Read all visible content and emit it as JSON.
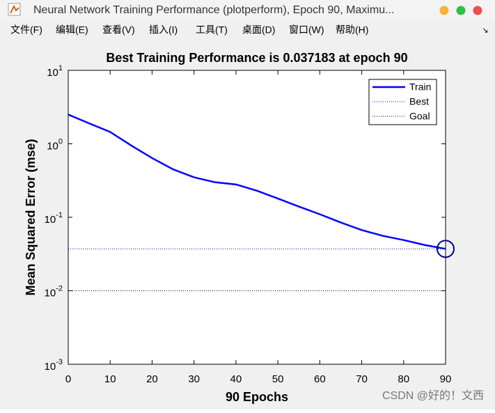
{
  "window": {
    "title": "Neural Network Training Performance (plotperform), Epoch 90, Maximu...",
    "menu": [
      "文件(F)",
      "编辑(E)",
      "查看(V)",
      "插入(I)",
      "工具(T)",
      "桌面(D)",
      "窗口(W)",
      "帮助(H)"
    ]
  },
  "chart_data": {
    "type": "line",
    "title": "Best Training Performance is 0.037183 at epoch 90",
    "x_label": "90 Epochs",
    "y_label": "Mean Squared Error  (mse)",
    "log_y": true,
    "x": [
      0,
      5,
      10,
      15,
      20,
      25,
      30,
      35,
      40,
      45,
      50,
      55,
      60,
      65,
      70,
      75,
      80,
      85,
      90
    ],
    "series": [
      {
        "name": "Train",
        "color": "#0000ff",
        "values": [
          2.5,
          1.9,
          1.45,
          0.95,
          0.64,
          0.45,
          0.35,
          0.3,
          0.28,
          0.23,
          0.18,
          0.14,
          0.11,
          0.085,
          0.067,
          0.056,
          0.049,
          0.042,
          0.037183
        ]
      },
      {
        "name": "Best",
        "color": "#0000ff",
        "value": 0.037183,
        "epoch": 90
      },
      {
        "name": "Goal",
        "color": "#000000",
        "value": 0.01
      }
    ],
    "xlim": [
      0,
      90
    ],
    "xticks": [
      0,
      10,
      20,
      30,
      40,
      50,
      60,
      70,
      80,
      90
    ],
    "ylim": [
      0.001,
      10
    ],
    "yticks": [
      {
        "value": 0.001,
        "label": "10^-3"
      },
      {
        "value": 0.01,
        "label": "10^-2"
      },
      {
        "value": 0.1,
        "label": "10^-1"
      },
      {
        "value": 1,
        "label": "10^0"
      },
      {
        "value": 10,
        "label": "10^1"
      }
    ],
    "legend": "top-right"
  },
  "watermark": "CSDN @好的！文西"
}
